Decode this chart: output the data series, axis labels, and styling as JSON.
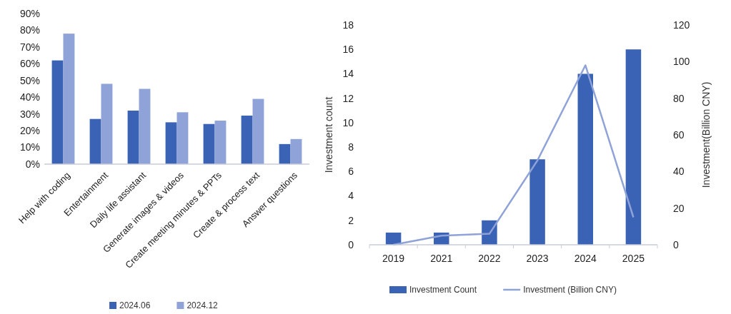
{
  "chart_data": [
    {
      "type": "bar",
      "categories": [
        "Help with coding",
        "Entertainment",
        "Daily life assistant",
        "Generate images & videos",
        "Create meeting minutes & PPTs",
        "Create & process text",
        "Answer questions"
      ],
      "series": [
        {
          "name": "2024.06",
          "color": "#3a62b5",
          "values": [
            62,
            27,
            32,
            25,
            24,
            29,
            12
          ]
        },
        {
          "name": "2024.12",
          "color": "#8fa3d9",
          "values": [
            78,
            48,
            45,
            31,
            26,
            39,
            15
          ]
        }
      ],
      "ylim": [
        0,
        90
      ],
      "yticks": [
        {
          "value": 0,
          "label": "0%"
        },
        {
          "value": 10,
          "label": "10%"
        },
        {
          "value": 20,
          "label": "20%"
        },
        {
          "value": 30,
          "label": "30%"
        },
        {
          "value": 40,
          "label": "40%"
        },
        {
          "value": 50,
          "label": "50%"
        },
        {
          "value": 60,
          "label": "60%"
        },
        {
          "value": 70,
          "label": "70%"
        },
        {
          "value": 80,
          "label": "80%"
        },
        {
          "value": 90,
          "label": "90%"
        }
      ],
      "legend": "bottom"
    },
    {
      "type": "bar",
      "categories": [
        "2019",
        "2021",
        "2022",
        "2023",
        "2024",
        "2025"
      ],
      "ylabel": "Investment count",
      "y2label": "Investment(Billion CNY)",
      "series": [
        {
          "name": "Investment Count",
          "color": "#3a62b5",
          "values": [
            1,
            1,
            2,
            7,
            14,
            16
          ]
        },
        {
          "name": "Investment (Billion CNY)",
          "type": "line",
          "axis": "y2",
          "color": "#8fa3d9",
          "values": [
            0,
            5,
            6,
            46,
            98,
            15
          ]
        }
      ],
      "ylim": [
        0,
        18
      ],
      "yticks": [
        0,
        2,
        4,
        6,
        8,
        10,
        12,
        14,
        16,
        18
      ],
      "y2lim": [
        0,
        120
      ],
      "y2ticks": [
        0,
        20,
        40,
        60,
        80,
        100,
        120
      ],
      "legend": "bottom"
    }
  ]
}
